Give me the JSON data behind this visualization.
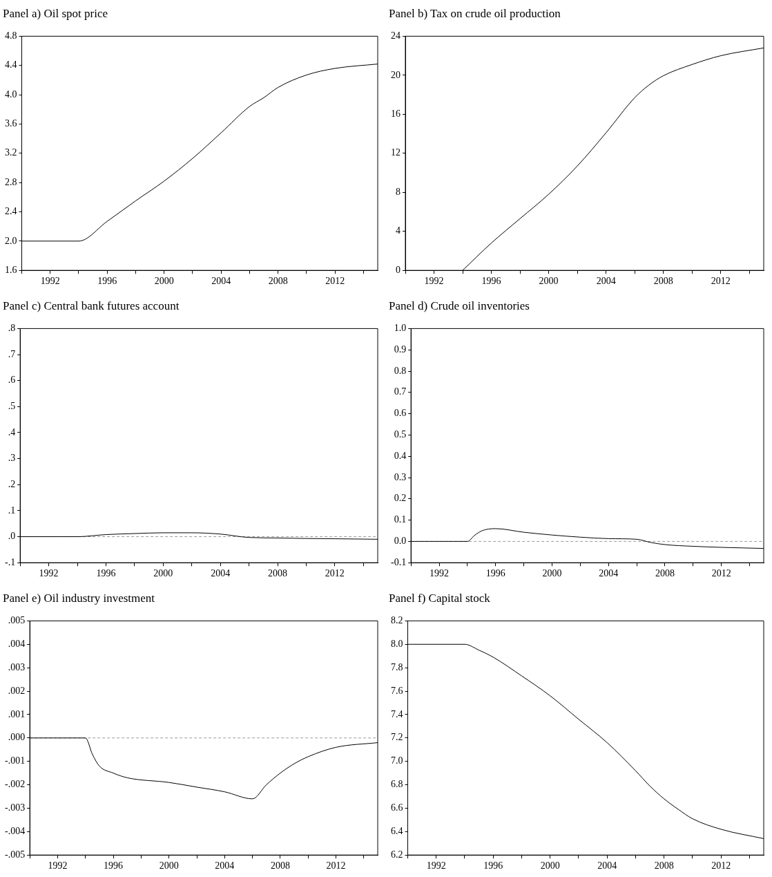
{
  "chart_data": [
    {
      "type": "line",
      "title": "Panel a) Oil spot price",
      "color": "#000000",
      "xlim": [
        1990,
        2015
      ],
      "xticks": [
        {
          "value": 1990,
          "label": null
        },
        1992,
        {
          "value": 1994,
          "label": null
        },
        1996,
        {
          "value": 1998,
          "label": null
        },
        2000,
        {
          "value": 2002,
          "label": null
        },
        2004,
        {
          "value": 2006,
          "label": null
        },
        2008,
        {
          "value": 2010,
          "label": null
        },
        2012,
        {
          "value": 2014,
          "label": null
        }
      ],
      "ylim": [
        1.6,
        4.8
      ],
      "yticks": [
        {
          "value": 1.6,
          "label": "1.6"
        },
        {
          "value": 2,
          "label": "2.0"
        },
        {
          "value": 2.4,
          "label": "2.4"
        },
        {
          "value": 2.8,
          "label": "2.8"
        },
        {
          "value": 3.2,
          "label": "3.2"
        },
        {
          "value": 3.6,
          "label": "3.6"
        },
        {
          "value": 4,
          "label": "4.0"
        },
        {
          "value": 4.4,
          "label": "4.4"
        },
        {
          "value": 4.8,
          "label": "4.8"
        }
      ],
      "x": [
        1990,
        1994,
        1996,
        1998,
        2000,
        2002,
        2004,
        2006,
        2007,
        2008,
        2010,
        2012,
        2015
      ],
      "values": [
        2.0,
        2.0,
        2.27,
        2.55,
        2.82,
        3.13,
        3.48,
        3.84,
        3.96,
        4.1,
        4.27,
        4.36,
        4.42
      ]
    },
    {
      "type": "line",
      "title": "Panel b) Tax on crude oil production",
      "color": "#000000",
      "xlim": [
        1990,
        2015
      ],
      "xticks": [
        {
          "value": 1990,
          "label": null
        },
        1992,
        {
          "value": 1994,
          "label": null
        },
        1996,
        {
          "value": 1998,
          "label": null
        },
        2000,
        {
          "value": 2002,
          "label": null
        },
        2004,
        {
          "value": 2006,
          "label": null
        },
        2008,
        {
          "value": 2010,
          "label": null
        },
        2012,
        {
          "value": 2014,
          "label": null
        }
      ],
      "ylim": [
        0,
        24
      ],
      "yticks": [
        0,
        4,
        8,
        12,
        16,
        20,
        24
      ],
      "x": [
        1994,
        1996,
        1998,
        2000,
        2002,
        2004,
        2006,
        2007,
        2008,
        2010,
        2012,
        2015
      ],
      "values": [
        0,
        2.8,
        5.3,
        7.8,
        10.7,
        14.1,
        17.7,
        19.0,
        19.95,
        21.1,
        22.0,
        22.8
      ]
    },
    {
      "type": "line",
      "title": "Panel c) Central bank futures account",
      "color": "#000000",
      "xlim": [
        1990,
        2015
      ],
      "xticks": [
        {
          "value": 1990,
          "label": null
        },
        1992,
        {
          "value": 1994,
          "label": null
        },
        1996,
        {
          "value": 1998,
          "label": null
        },
        2000,
        {
          "value": 2002,
          "label": null
        },
        2004,
        {
          "value": 2006,
          "label": null
        },
        2008,
        {
          "value": 2010,
          "label": null
        },
        2012,
        {
          "value": 2014,
          "label": null
        }
      ],
      "ylim": [
        -0.1,
        0.8
      ],
      "yticks": [
        {
          "value": -0.1,
          "label": "-.1"
        },
        {
          "value": 0,
          "label": ".0"
        },
        {
          "value": 0.1,
          "label": ".1"
        },
        {
          "value": 0.2,
          "label": ".2"
        },
        {
          "value": 0.3,
          "label": ".3"
        },
        {
          "value": 0.4,
          "label": ".4"
        },
        {
          "value": 0.5,
          "label": ".5"
        },
        {
          "value": 0.6,
          "label": ".6"
        },
        {
          "value": 0.7,
          "label": ".7"
        },
        {
          "value": 0.8,
          "label": ".8"
        }
      ],
      "ref_lines": [
        {
          "axis": "y",
          "value": 0,
          "color": "#999999",
          "line_style": "dashed"
        }
      ],
      "x": [
        1990,
        1994,
        1996,
        1998,
        2000,
        2002,
        2004,
        2006,
        2008,
        2010,
        2012,
        2015
      ],
      "values": [
        0,
        0,
        0.008,
        0.012,
        0.015,
        0.015,
        0.01,
        -0.003,
        -0.005,
        -0.007,
        -0.008,
        -0.01
      ]
    },
    {
      "type": "line",
      "title": "Panel d) Crude oil inventories",
      "color": "#000000",
      "xlim": [
        1990,
        2015
      ],
      "xticks": [
        {
          "value": 1990,
          "label": null
        },
        1992,
        {
          "value": 1994,
          "label": null
        },
        1996,
        {
          "value": 1998,
          "label": null
        },
        2000,
        {
          "value": 2002,
          "label": null
        },
        2004,
        {
          "value": 2006,
          "label": null
        },
        2008,
        {
          "value": 2010,
          "label": null
        },
        2012,
        {
          "value": 2014,
          "label": null
        }
      ],
      "ylim": [
        -0.1,
        1.0
      ],
      "yticks": [
        {
          "value": -0.1,
          "label": "-0.1"
        },
        {
          "value": 0,
          "label": "0.0"
        },
        {
          "value": 0.1,
          "label": "0.1"
        },
        {
          "value": 0.2,
          "label": "0.2"
        },
        {
          "value": 0.3,
          "label": "0.3"
        },
        {
          "value": 0.4,
          "label": "0.4"
        },
        {
          "value": 0.5,
          "label": "0.5"
        },
        {
          "value": 0.6,
          "label": "0.6"
        },
        {
          "value": 0.7,
          "label": "0.7"
        },
        {
          "value": 0.8,
          "label": "0.8"
        },
        {
          "value": 0.9,
          "label": "0.9"
        },
        {
          "value": 1,
          "label": "1.0"
        }
      ],
      "ref_lines": [
        {
          "axis": "y",
          "value": 0,
          "color": "#999999",
          "line_style": "dashed"
        }
      ],
      "x": [
        1990,
        1994,
        1994.5,
        1995,
        1995.5,
        1996,
        1998,
        2000,
        2002,
        2004,
        2006,
        2007,
        2008,
        2010,
        2012,
        2015
      ],
      "values": [
        0,
        0,
        0.028,
        0.049,
        0.058,
        0.06,
        0.043,
        0.03,
        0.02,
        0.013,
        0.01,
        -0.005,
        -0.015,
        -0.023,
        -0.028,
        -0.033
      ]
    },
    {
      "type": "line",
      "title": "Panel e) Oil industry investment",
      "color": "#000000",
      "xlim": [
        1990,
        2015
      ],
      "xticks": [
        {
          "value": 1990,
          "label": null
        },
        1992,
        {
          "value": 1994,
          "label": null
        },
        1996,
        {
          "value": 1998,
          "label": null
        },
        2000,
        {
          "value": 2002,
          "label": null
        },
        2004,
        {
          "value": 2006,
          "label": null
        },
        2008,
        {
          "value": 2010,
          "label": null
        },
        2012,
        {
          "value": 2014,
          "label": null
        }
      ],
      "ylim": [
        -0.005,
        0.005
      ],
      "yticks": [
        {
          "value": -0.005,
          "label": "-.005"
        },
        {
          "value": -0.004,
          "label": "-.004"
        },
        {
          "value": -0.003,
          "label": "-.003"
        },
        {
          "value": -0.002,
          "label": "-.002"
        },
        {
          "value": -0.001,
          "label": "-.001"
        },
        {
          "value": 0,
          "label": ".000"
        },
        {
          "value": 0.001,
          "label": ".001"
        },
        {
          "value": 0.002,
          "label": ".002"
        },
        {
          "value": 0.003,
          "label": ".003"
        },
        {
          "value": 0.004,
          "label": ".004"
        },
        {
          "value": 0.005,
          "label": ".005"
        }
      ],
      "ref_lines": [
        {
          "axis": "y",
          "value": 0,
          "color": "#999999",
          "line_style": "dashed"
        }
      ],
      "x": [
        1990,
        1994,
        1994.5,
        1995,
        1996,
        1997,
        2000,
        2002,
        2004,
        2006,
        2007,
        2008,
        2009,
        2010,
        2012,
        2015
      ],
      "values": [
        0,
        0,
        -0.0007,
        -0.0012,
        -0.0015,
        -0.0017,
        -0.0019,
        -0.0021,
        -0.0023,
        -0.0026,
        -0.002,
        -0.0015,
        -0.0011,
        -0.0008,
        -0.0004,
        -0.0002
      ]
    },
    {
      "type": "line",
      "title": "Panel f) Capital stock",
      "color": "#000000",
      "xlim": [
        1990,
        2015
      ],
      "xticks": [
        {
          "value": 1990,
          "label": null
        },
        1992,
        {
          "value": 1994,
          "label": null
        },
        1996,
        {
          "value": 1998,
          "label": null
        },
        2000,
        {
          "value": 2002,
          "label": null
        },
        2004,
        {
          "value": 2006,
          "label": null
        },
        2008,
        {
          "value": 2010,
          "label": null
        },
        2012,
        {
          "value": 2014,
          "label": null
        }
      ],
      "ylim": [
        6.2,
        8.2
      ],
      "yticks": [
        {
          "value": 6.2,
          "label": "6.2"
        },
        {
          "value": 6.4,
          "label": "6.4"
        },
        {
          "value": 6.6,
          "label": "6.6"
        },
        {
          "value": 6.8,
          "label": "6.8"
        },
        {
          "value": 7,
          "label": "7.0"
        },
        {
          "value": 7.2,
          "label": "7.2"
        },
        {
          "value": 7.4,
          "label": "7.4"
        },
        {
          "value": 7.6,
          "label": "7.6"
        },
        {
          "value": 7.8,
          "label": "7.8"
        },
        {
          "value": 8,
          "label": "8.0"
        },
        {
          "value": 8.2,
          "label": "8.2"
        }
      ],
      "x": [
        1990,
        1994,
        1995,
        1996,
        1998,
        2000,
        2002,
        2004,
        2006,
        2007,
        2008,
        2009,
        2010,
        2012,
        2015
      ],
      "values": [
        8.0,
        8.0,
        7.95,
        7.89,
        7.73,
        7.56,
        7.36,
        7.16,
        6.92,
        6.79,
        6.68,
        6.59,
        6.51,
        6.42,
        6.34
      ]
    }
  ]
}
